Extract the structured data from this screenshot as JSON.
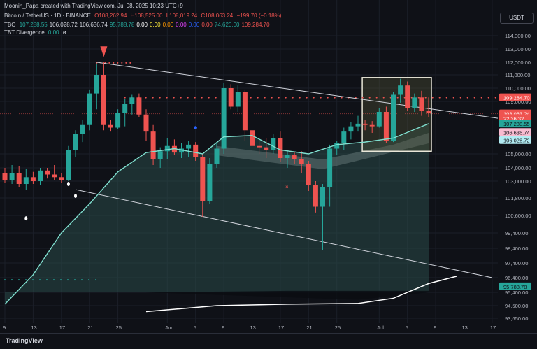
{
  "attribution": "Moonin_Papa created with TradingView.com, Jul 08, 2025 10:23 UTC+9",
  "symbol_line": {
    "name": "Bitcoin / TetherUS · 1D · BINANCE",
    "o": "O108,262.94",
    "h": "H108,525.00",
    "l": "L108,019.24",
    "c": "C108,063.24",
    "chg": "−199.70 (−0.18%)"
  },
  "tbo_line": {
    "label": "TBO",
    "values": [
      "107,288.55",
      "106,028.72",
      "106,636.74",
      "95,788.78",
      "0.00",
      "0.00",
      "0.00",
      "0.00",
      "0.00",
      "0.00",
      "74,620.00",
      "109,284.70"
    ],
    "colors": [
      "#26a69a",
      "#d1d4dc",
      "#d1d4dc",
      "#26a69a",
      "#ffffff",
      "#ffeb3b",
      "#ff9800",
      "#e040fb",
      "#2962ff",
      "#ef5350",
      "#26a69a",
      "#ef5350"
    ]
  },
  "tbt_line": {
    "label": "TBT Divergence",
    "v1": "0.00",
    "v2": "ø"
  },
  "currency": "USDT",
  "footer_logo": "TradingView",
  "price_tags": [
    {
      "text": "109,284.70",
      "bg": "#ef5350",
      "fg": "#ffffff",
      "price": 109284.7
    },
    {
      "text": "108,063.24",
      "bg": "#ef5350",
      "fg": "#ffffff",
      "price": 108063.24
    },
    {
      "text": "22:36:32",
      "bg": "#ef5350",
      "fg": "#ffffff",
      "price": 107700
    },
    {
      "text": "107,288.55",
      "bg": "#26a69a",
      "fg": "#0f1117",
      "price": 107288.55
    },
    {
      "text": "106,636.74",
      "bg": "#f8bbd0",
      "fg": "#0f1117",
      "price": 106636.74
    },
    {
      "text": "106,028.72",
      "bg": "#b2ebf2",
      "fg": "#0f1117",
      "price": 106028.72
    },
    {
      "text": "95,788.78",
      "bg": "#26a69a",
      "fg": "#0f1117",
      "price": 95788.78
    }
  ],
  "chart_data": {
    "type": "candlestick",
    "y_axis_ticks": [
      "114,000.00",
      "113,000.00",
      "112,000.00",
      "111,000.00",
      "110,000.00",
      "109,000.00",
      "105,000.00",
      "104,000.00",
      "103,000.00",
      "101,800.00",
      "100,600.00",
      "99,400.00",
      "98,400.00",
      "97,400.00",
      "96,400.00",
      "95,400.00",
      "94,500.00",
      "93,650.00"
    ],
    "y_tick_values": [
      114000,
      113000,
      112000,
      111000,
      110000,
      109000,
      105000,
      104000,
      103000,
      101800,
      100600,
      99400,
      98400,
      97400,
      96400,
      95400,
      94500,
      93650
    ],
    "x_axis_ticks": [
      "9",
      "13",
      "17",
      "21",
      "25",
      "Jun",
      "5",
      "9",
      "13",
      "17",
      "21",
      "25",
      "Jul",
      "5",
      "9",
      "13",
      "17"
    ],
    "x_tick_days": [
      0,
      4,
      8,
      12,
      16,
      23,
      27,
      31,
      35,
      39,
      43,
      47,
      53,
      57,
      61,
      65,
      69
    ],
    "candles": [
      [
        103600,
        104000,
        102900,
        103100
      ],
      [
        103100,
        104200,
        102800,
        103600
      ],
      [
        103600,
        104100,
        102600,
        102800
      ],
      [
        102800,
        103900,
        102400,
        103300
      ],
      [
        103300,
        103700,
        102800,
        103000
      ],
      [
        103000,
        104000,
        102700,
        103800
      ],
      [
        103800,
        104000,
        103200,
        103500
      ],
      [
        103500,
        104200,
        103100,
        103300
      ],
      [
        103300,
        103600,
        102900,
        103100
      ],
      [
        103100,
        105600,
        103000,
        105300
      ],
      [
        105300,
        106800,
        104800,
        106500
      ],
      [
        106500,
        107600,
        105900,
        107200
      ],
      [
        107200,
        109900,
        106800,
        109600
      ],
      [
        109600,
        111900,
        108400,
        111000
      ],
      [
        111000,
        112000,
        106800,
        107200
      ],
      [
        107200,
        107600,
        106700,
        107000
      ],
      [
        107000,
        108400,
        106900,
        108100
      ],
      [
        108100,
        109200,
        107100,
        108800
      ],
      [
        108800,
        109500,
        108000,
        109300
      ],
      [
        109300,
        109600,
        107800,
        108000
      ],
      [
        108000,
        108400,
        106000,
        106700
      ],
      [
        106700,
        107200,
        104200,
        104600
      ],
      [
        104600,
        105500,
        104000,
        105200
      ],
      [
        105200,
        106200,
        104600,
        105600
      ],
      [
        105600,
        106100,
        104900,
        105100
      ],
      [
        105100,
        105800,
        104700,
        105400
      ],
      [
        105400,
        106000,
        104800,
        105700
      ],
      [
        105700,
        105900,
        104500,
        104800
      ],
      [
        104800,
        105000,
        100500,
        101600
      ],
      [
        101600,
        104700,
        101400,
        104300
      ],
      [
        104300,
        105900,
        104000,
        105400
      ],
      [
        105400,
        110400,
        105000,
        110000
      ],
      [
        110000,
        110300,
        108400,
        108600
      ],
      [
        108600,
        110200,
        108200,
        109700
      ],
      [
        109700,
        109900,
        106000,
        106800
      ],
      [
        106800,
        107500,
        105200,
        105600
      ],
      [
        105600,
        106000,
        105000,
        105500
      ],
      [
        105500,
        106200,
        104700,
        105300
      ],
      [
        105300,
        106500,
        105000,
        106200
      ],
      [
        106200,
        106700,
        104400,
        104700
      ],
      [
        104700,
        105300,
        104000,
        104900
      ],
      [
        104900,
        105100,
        104300,
        104600
      ],
      [
        104600,
        105200,
        103600,
        104300
      ],
      [
        104300,
        104500,
        102300,
        102700
      ],
      [
        102700,
        103000,
        100800,
        101200
      ],
      [
        101200,
        102800,
        98300,
        102600
      ],
      [
        102600,
        105700,
        101200,
        105400
      ],
      [
        105400,
        106000,
        104900,
        105800
      ],
      [
        105800,
        107000,
        105300,
        106700
      ],
      [
        106700,
        107400,
        106100,
        107100
      ],
      [
        107100,
        107900,
        106700,
        107300
      ],
      [
        107300,
        107600,
        106800,
        107200
      ],
      [
        107200,
        107500,
        106600,
        107100
      ],
      [
        107100,
        108500,
        107000,
        108200
      ],
      [
        108200,
        108600,
        105800,
        106000
      ],
      [
        106000,
        109700,
        105900,
        109500
      ],
      [
        109500,
        110700,
        108900,
        110200
      ],
      [
        110200,
        110500,
        108300,
        108500
      ],
      [
        108500,
        109600,
        108200,
        109300
      ],
      [
        109300,
        109800,
        107900,
        108300
      ],
      [
        108300,
        109300,
        107800,
        108100
      ]
    ],
    "ema_line": [
      [
        0,
        94600
      ],
      [
        4,
        96600
      ],
      [
        8,
        99400
      ],
      [
        12,
        101400
      ],
      [
        16,
        103700
      ],
      [
        20,
        105100
      ],
      [
        24,
        105400
      ],
      [
        28,
        105000
      ],
      [
        31,
        106300
      ],
      [
        35,
        106400
      ],
      [
        39,
        105300
      ],
      [
        43,
        105000
      ],
      [
        47,
        105700
      ],
      [
        51,
        105900
      ],
      [
        55,
        106200
      ],
      [
        60,
        107300
      ]
    ],
    "baseline_curve": [
      [
        20,
        94100
      ],
      [
        30,
        94500
      ],
      [
        40,
        94600
      ],
      [
        50,
        94650
      ],
      [
        55,
        95000
      ],
      [
        60,
        96000
      ],
      [
        64,
        96500
      ]
    ],
    "trendline_upper": [
      [
        13,
        112000
      ],
      [
        74,
        107400
      ]
    ],
    "trendline_lower": [
      [
        10,
        102400
      ],
      [
        69,
        96400
      ]
    ],
    "highlight_box": {
      "from_day": 51,
      "to_day": 60,
      "high": 110800,
      "low": 105200
    },
    "resistance_dots_price": 109284.7,
    "support_dots_price": 96250,
    "current_price": 108063.24
  }
}
